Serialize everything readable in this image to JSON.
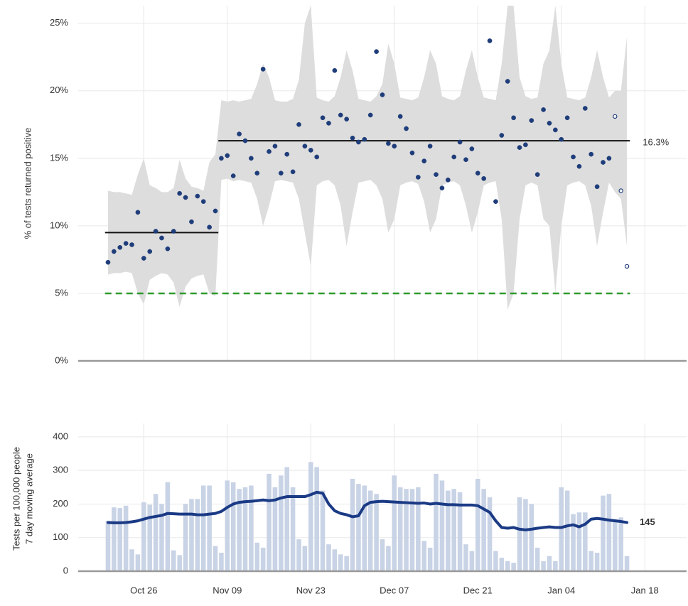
{
  "chart_data": [
    {
      "type": "scatter",
      "ylabel": "% of tests returned positive",
      "x": [
        "Oct 20",
        "Oct 21",
        "Oct 22",
        "Oct 23",
        "Oct 24",
        "Oct 25",
        "Oct 26",
        "Oct 27",
        "Oct 28",
        "Oct 29",
        "Oct 30",
        "Oct 31",
        "Nov 1",
        "Nov 2",
        "Nov 3",
        "Nov 4",
        "Nov 5",
        "Nov 6",
        "Nov 7",
        "Nov 8",
        "Nov 9",
        "Nov 10",
        "Nov 11",
        "Nov 12",
        "Nov 13",
        "Nov 14",
        "Nov 15",
        "Nov 16",
        "Nov 17",
        "Nov 18",
        "Nov 19",
        "Nov 20",
        "Nov 21",
        "Nov 22",
        "Nov 23",
        "Nov 24",
        "Nov 25",
        "Nov 26",
        "Nov 27",
        "Nov 28",
        "Nov 29",
        "Nov 30",
        "Dec 1",
        "Dec 2",
        "Dec 3",
        "Dec 4",
        "Dec 5",
        "Dec 6",
        "Dec 7",
        "Dec 8",
        "Dec 9",
        "Dec 10",
        "Dec 11",
        "Dec 12",
        "Dec 13",
        "Dec 14",
        "Dec 15",
        "Dec 16",
        "Dec 17",
        "Dec 18",
        "Dec 19",
        "Dec 20",
        "Dec 21",
        "Dec 22",
        "Dec 23",
        "Dec 24",
        "Dec 25",
        "Dec 26",
        "Dec 27",
        "Dec 28",
        "Dec 29",
        "Dec 30",
        "Dec 31",
        "Jan 1",
        "Jan 2",
        "Jan 3",
        "Jan 4",
        "Jan 5",
        "Jan 6",
        "Jan 7",
        "Jan 8",
        "Jan 9",
        "Jan 10",
        "Jan 11",
        "Jan 12",
        "Jan 13",
        "Jan 14",
        "Jan 15"
      ],
      "values": [
        7.3,
        8.1,
        8.4,
        8.7,
        8.6,
        11.0,
        7.6,
        8.1,
        9.6,
        9.1,
        8.3,
        9.6,
        12.4,
        12.1,
        10.3,
        12.2,
        11.8,
        9.9,
        11.1,
        15.0,
        15.2,
        13.7,
        16.8,
        16.3,
        15.0,
        13.9,
        21.6,
        15.5,
        15.9,
        13.9,
        15.3,
        14.0,
        17.5,
        15.9,
        15.6,
        15.1,
        18.0,
        17.6,
        21.5,
        18.2,
        17.9,
        16.5,
        16.2,
        16.4,
        18.2,
        22.9,
        19.7,
        16.1,
        15.9,
        18.1,
        17.2,
        15.4,
        13.6,
        14.8,
        15.9,
        13.8,
        12.8,
        13.4,
        15.1,
        16.2,
        14.9,
        15.7,
        13.9,
        13.5,
        23.7,
        11.8,
        16.7,
        20.7,
        18.0,
        15.8,
        16.0,
        17.8,
        13.8,
        18.6,
        17.6,
        17.1,
        16.4,
        18.0,
        15.1,
        14.4,
        18.7,
        15.3,
        12.9,
        14.7,
        15.0,
        18.1,
        12.6,
        7.0
      ],
      "band_upper": [
        12.6,
        12.5,
        12.5,
        12.4,
        12.3,
        13.8,
        15.0,
        13.0,
        12.8,
        12.5,
        12.5,
        12.8,
        14.9,
        13.5,
        12.9,
        12.8,
        12.6,
        14.7,
        15.3,
        19.3,
        19.2,
        19.3,
        19.2,
        19.3,
        19.4,
        20.5,
        22.0,
        21.0,
        19.3,
        19.2,
        19.2,
        19.4,
        20.8,
        25.0,
        26.3,
        19.5,
        19.3,
        19.2,
        19.6,
        21.0,
        23.0,
        21.5,
        19.4,
        19.3,
        19.2,
        19.6,
        20.5,
        23.5,
        22.0,
        19.5,
        19.4,
        19.3,
        19.5,
        21.0,
        23.0,
        22.0,
        19.6,
        19.4,
        19.3,
        19.6,
        21.5,
        23.0,
        21.0,
        19.5,
        19.4,
        19.3,
        22.0,
        26.3,
        26.3,
        21.0,
        19.6,
        19.4,
        19.5,
        22.0,
        23.0,
        26.3,
        22.0,
        19.5,
        19.4,
        19.3,
        19.5,
        21.0,
        23.0,
        21.0,
        19.5,
        20.0,
        20.0,
        24.0
      ],
      "band_lower": [
        6.4,
        6.5,
        6.5,
        6.6,
        6.5,
        5.0,
        4.2,
        6.0,
        6.3,
        6.5,
        6.4,
        5.8,
        4.0,
        5.5,
        6.1,
        6.3,
        6.4,
        5.0,
        4.8,
        13.4,
        13.5,
        13.3,
        13.4,
        13.3,
        13.2,
        12.0,
        10.0,
        11.5,
        13.3,
        13.4,
        13.3,
        13.2,
        12.0,
        9.5,
        7.0,
        13.0,
        13.3,
        13.4,
        13.0,
        11.5,
        8.5,
        11.0,
        13.2,
        13.3,
        13.4,
        13.0,
        12.0,
        9.5,
        10.5,
        13.0,
        13.2,
        13.3,
        13.1,
        11.8,
        9.5,
        10.5,
        13.0,
        13.2,
        13.3,
        13.0,
        11.5,
        9.5,
        11.0,
        13.0,
        13.2,
        13.3,
        10.5,
        3.8,
        5.0,
        10.5,
        13.0,
        13.2,
        13.0,
        10.5,
        10.0,
        5.0,
        10.0,
        13.0,
        13.2,
        13.3,
        13.0,
        11.5,
        8.5,
        11.0,
        13.2,
        12.5,
        12.0,
        8.5
      ],
      "open_markers_from": "Jan 13",
      "color": "#1f3d7a",
      "band_color": "#dddddd",
      "phases": [
        {
          "start": "Oct 20",
          "end": "Nov 7",
          "mean": 9.5
        },
        {
          "start": "Nov 8",
          "end": "Jan 15",
          "mean": 16.3,
          "label": "16.3%"
        }
      ],
      "target": 5,
      "target_color": "#2e9a2e",
      "xlim": [
        "Oct 15",
        "Jan 25"
      ],
      "xticks": [
        "Oct 26",
        "Nov 09",
        "Nov 23",
        "Dec 07",
        "Dec 21",
        "Jan 04",
        "Jan 18"
      ],
      "ylim": [
        0,
        26.3
      ],
      "yticks": [
        {
          "value": 0,
          "label": "0%"
        },
        {
          "value": 5,
          "label": "5%"
        },
        {
          "value": 10,
          "label": "10%"
        },
        {
          "value": 15,
          "label": "15%"
        },
        {
          "value": 20,
          "label": "20%"
        },
        {
          "value": 25,
          "label": "25%"
        }
      ],
      "grid": true
    },
    {
      "type": "bar",
      "ylabel": [
        "Tests per 100,000 people",
        "7 day moving average"
      ],
      "x": [
        "Oct 20",
        "Oct 21",
        "Oct 22",
        "Oct 23",
        "Oct 24",
        "Oct 25",
        "Oct 26",
        "Oct 27",
        "Oct 28",
        "Oct 29",
        "Oct 30",
        "Oct 31",
        "Nov 1",
        "Nov 2",
        "Nov 3",
        "Nov 4",
        "Nov 5",
        "Nov 6",
        "Nov 7",
        "Nov 8",
        "Nov 9",
        "Nov 10",
        "Nov 11",
        "Nov 12",
        "Nov 13",
        "Nov 14",
        "Nov 15",
        "Nov 16",
        "Nov 17",
        "Nov 18",
        "Nov 19",
        "Nov 20",
        "Nov 21",
        "Nov 22",
        "Nov 23",
        "Nov 24",
        "Nov 25",
        "Nov 26",
        "Nov 27",
        "Nov 28",
        "Nov 29",
        "Nov 30",
        "Dec 1",
        "Dec 2",
        "Dec 3",
        "Dec 4",
        "Dec 5",
        "Dec 6",
        "Dec 7",
        "Dec 8",
        "Dec 9",
        "Dec 10",
        "Dec 11",
        "Dec 12",
        "Dec 13",
        "Dec 14",
        "Dec 15",
        "Dec 16",
        "Dec 17",
        "Dec 18",
        "Dec 19",
        "Dec 20",
        "Dec 21",
        "Dec 22",
        "Dec 23",
        "Dec 24",
        "Dec 25",
        "Dec 26",
        "Dec 27",
        "Dec 28",
        "Dec 29",
        "Dec 30",
        "Dec 31",
        "Jan 1",
        "Jan 2",
        "Jan 3",
        "Jan 4",
        "Jan 5",
        "Jan 6",
        "Jan 7",
        "Jan 8",
        "Jan 9",
        "Jan 10",
        "Jan 11",
        "Jan 12",
        "Jan 13",
        "Jan 14",
        "Jan 15"
      ],
      "series": [
        {
          "kind": "bar",
          "color": "#c9d3e6",
          "values": [
            150,
            190,
            188,
            195,
            65,
            50,
            205,
            198,
            230,
            200,
            265,
            62,
            48,
            200,
            215,
            215,
            255,
            255,
            75,
            55,
            270,
            265,
            245,
            250,
            255,
            85,
            70,
            290,
            250,
            285,
            310,
            250,
            95,
            75,
            325,
            310,
            240,
            80,
            65,
            50,
            45,
            275,
            260,
            255,
            240,
            230,
            95,
            75,
            285,
            250,
            245,
            245,
            250,
            90,
            70,
            290,
            270,
            240,
            245,
            235,
            80,
            60,
            275,
            245,
            220,
            60,
            40,
            30,
            25,
            220,
            215,
            200,
            70,
            30,
            45,
            30,
            250,
            240,
            170,
            175,
            175,
            60,
            55,
            225,
            230,
            155,
            160,
            45
          ]
        },
        {
          "kind": "line",
          "color": "#1a3a85",
          "end_label": "145",
          "values": [
            145,
            144,
            144,
            145,
            147,
            150,
            155,
            160,
            163,
            166,
            172,
            171,
            170,
            170,
            170,
            168,
            168,
            170,
            172,
            178,
            190,
            200,
            205,
            207,
            208,
            210,
            212,
            210,
            212,
            218,
            222,
            222,
            222,
            222,
            228,
            235,
            232,
            200,
            180,
            172,
            168,
            162,
            165,
            195,
            205,
            207,
            208,
            207,
            206,
            205,
            204,
            203,
            202,
            203,
            200,
            202,
            200,
            198,
            198,
            197,
            197,
            197,
            195,
            185,
            175,
            150,
            130,
            128,
            130,
            125,
            123,
            125,
            128,
            130,
            132,
            130,
            130,
            135,
            138,
            132,
            140,
            155,
            157,
            155,
            152,
            150,
            148,
            145
          ]
        }
      ],
      "xlim": [
        "Oct 15",
        "Jan 25"
      ],
      "xticks": [
        "Oct 26",
        "Nov 09",
        "Nov 23",
        "Dec 07",
        "Dec 21",
        "Jan 04",
        "Jan 18"
      ],
      "ylim": [
        0,
        440
      ],
      "yticks": [
        0,
        100,
        200,
        300,
        400
      ],
      "grid": true
    }
  ]
}
